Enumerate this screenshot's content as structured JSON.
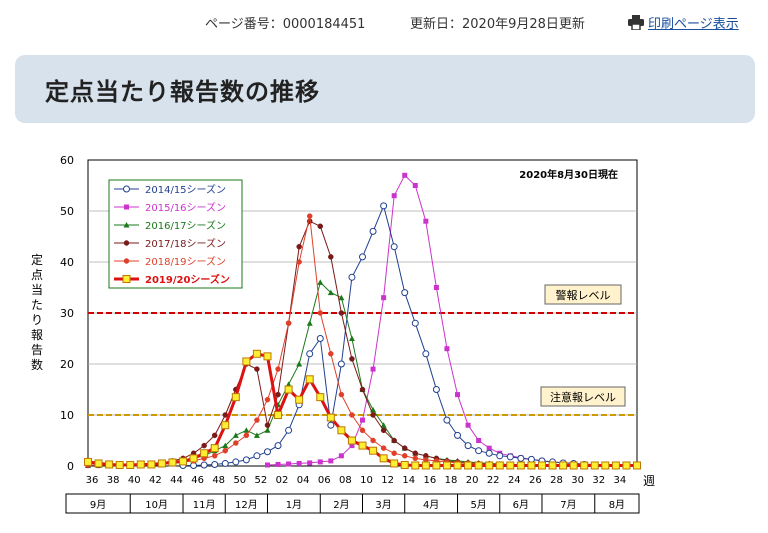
{
  "header": {
    "page_number": "ページ番号：0000184451",
    "updated": "更新日：2020年9月28日更新",
    "print_link": "印刷ページ表示"
  },
  "page_title": "定点当たり報告数の推移",
  "chart_data": {
    "type": "line",
    "title": "",
    "annotation": "2020年8月30日現在",
    "ylabel": "定点当たり報告数",
    "xlabel": "週",
    "ylim": [
      0,
      60
    ],
    "yticks": [
      0,
      10,
      20,
      30,
      40,
      50,
      60
    ],
    "grid": true,
    "legend_position": "top-left",
    "x_tick_labels": [
      "36",
      "38",
      "40",
      "42",
      "44",
      "46",
      "48",
      "50",
      "52",
      "02",
      "04",
      "06",
      "08",
      "10",
      "12",
      "14",
      "16",
      "18",
      "20",
      "22",
      "24",
      "26",
      "28",
      "30",
      "32",
      "34"
    ],
    "months": [
      "9月",
      "10月",
      "11月",
      "12月",
      "1月",
      "2月",
      "3月",
      "4月",
      "5月",
      "6月",
      "7月",
      "8月"
    ],
    "thresholds": [
      {
        "label": "警報レベル",
        "value": 30,
        "color": "#cc0000"
      },
      {
        "label": "注意報レベル",
        "value": 10,
        "color": "#cc9900"
      }
    ],
    "series": [
      {
        "name": "2014/15シーズン",
        "color": "#1f3f8f",
        "marker": "circle-open",
        "values": [
          null,
          null,
          null,
          null,
          null,
          null,
          null,
          null,
          null,
          0.1,
          0.1,
          0.2,
          0.3,
          0.5,
          0.8,
          1.2,
          2.0,
          2.8,
          4.0,
          7.0,
          12.0,
          22.0,
          25.0,
          8.0,
          20.0,
          37.0,
          41.0,
          46.0,
          51.0,
          43.0,
          34.0,
          28.0,
          22.0,
          15.0,
          9.0,
          6.0,
          4.0,
          3.0,
          2.5,
          2.0,
          1.8,
          1.5,
          1.3,
          1.0,
          0.8,
          0.6,
          0.5,
          0.3,
          0.2,
          0.1,
          0.1,
          0.1,
          0.1
        ]
      },
      {
        "name": "2015/16シーズン",
        "color": "#cc33cc",
        "marker": "square",
        "values": [
          null,
          null,
          null,
          null,
          null,
          null,
          null,
          null,
          null,
          null,
          null,
          null,
          null,
          null,
          null,
          null,
          null,
          0.2,
          0.3,
          0.4,
          0.5,
          0.6,
          0.8,
          1.0,
          2.0,
          4.0,
          9.0,
          19.0,
          33.0,
          53.0,
          57.0,
          55.0,
          48.0,
          35.0,
          23.0,
          14.0,
          8.0,
          5.0,
          3.5,
          2.5,
          2.0,
          1.6,
          1.3,
          1.0,
          0.8,
          0.6,
          0.5,
          0.4,
          0.3,
          0.2,
          0.2,
          0.1,
          0.1
        ]
      },
      {
        "name": "2016/17シーズン",
        "color": "#1a7a1a",
        "marker": "triangle",
        "values": [
          0.1,
          0.1,
          0.1,
          0.1,
          0.1,
          0.2,
          0.3,
          0.5,
          0.8,
          1.0,
          1.5,
          2.0,
          3.0,
          4.0,
          6.0,
          7.0,
          6.0,
          7.0,
          12.0,
          16.0,
          20.0,
          28.0,
          36.0,
          34.0,
          33.0,
          25.0,
          15.0,
          11.0,
          8.0,
          5.0,
          3.5,
          2.5,
          2.0,
          1.5,
          1.2,
          1.0,
          0.8,
          0.6,
          0.5,
          0.4,
          0.3,
          0.2,
          0.2,
          0.1,
          0.1,
          0.1,
          0.1,
          0.1,
          0.1,
          0.1,
          0.1,
          0.1
        ]
      },
      {
        "name": "2017/18シーズン",
        "color": "#7a1a1a",
        "marker": "circle",
        "values": [
          0.1,
          0.1,
          0.1,
          0.1,
          0.2,
          0.3,
          0.4,
          0.6,
          1.0,
          1.5,
          2.5,
          4.0,
          6.0,
          10.0,
          15.0,
          20.0,
          19.0,
          8.0,
          14.0,
          28.0,
          43.0,
          48.0,
          47.0,
          41.0,
          30.0,
          21.0,
          15.0,
          10.0,
          7.0,
          5.0,
          3.5,
          2.5,
          2.0,
          1.5,
          1.0,
          0.8,
          0.6,
          0.5,
          0.4,
          0.3,
          0.2,
          0.2,
          0.1,
          0.1,
          0.1,
          0.1,
          0.1,
          0.1,
          0.1,
          0.1,
          0.1,
          0.1,
          0.1
        ]
      },
      {
        "name": "2018/19シーズン",
        "color": "#e0402a",
        "marker": "circle",
        "values": [
          0.2,
          0.2,
          0.2,
          0.2,
          0.2,
          0.3,
          0.4,
          0.5,
          0.6,
          0.8,
          1.0,
          1.5,
          2.0,
          3.0,
          4.5,
          6.0,
          9.0,
          13.0,
          19.0,
          28.0,
          40.0,
          49.0,
          30.0,
          22.0,
          14.0,
          10.0,
          7.0,
          5.0,
          3.5,
          2.5,
          2.0,
          1.5,
          1.2,
          1.0,
          0.8,
          0.6,
          0.5,
          0.4,
          0.3,
          0.3,
          0.2,
          0.2,
          0.2,
          0.2,
          0.2,
          0.2,
          0.2,
          0.2,
          0.2,
          0.2,
          0.2,
          0.2
        ]
      },
      {
        "name": "2019/20シーズン",
        "color": "#dd1111",
        "marker": "square-yellow",
        "bold": true,
        "values": [
          0.8,
          0.5,
          0.3,
          0.2,
          0.2,
          0.3,
          0.3,
          0.5,
          0.7,
          0.9,
          1.5,
          2.5,
          3.5,
          8.0,
          13.5,
          20.5,
          22.0,
          21.5,
          10.0,
          15.0,
          13.0,
          17.0,
          13.5,
          9.5,
          7.0,
          5.0,
          4.0,
          3.0,
          1.5,
          0.5,
          0.2,
          0.1,
          0.1,
          0.1,
          0.1,
          0.1,
          0.1,
          0.1,
          0.1,
          0.1,
          0.1,
          0.1,
          0.1,
          0.1,
          0.1,
          0.1,
          0.1,
          0.1,
          0.1,
          0.1,
          0.1,
          0.1,
          0.1
        ]
      }
    ]
  }
}
